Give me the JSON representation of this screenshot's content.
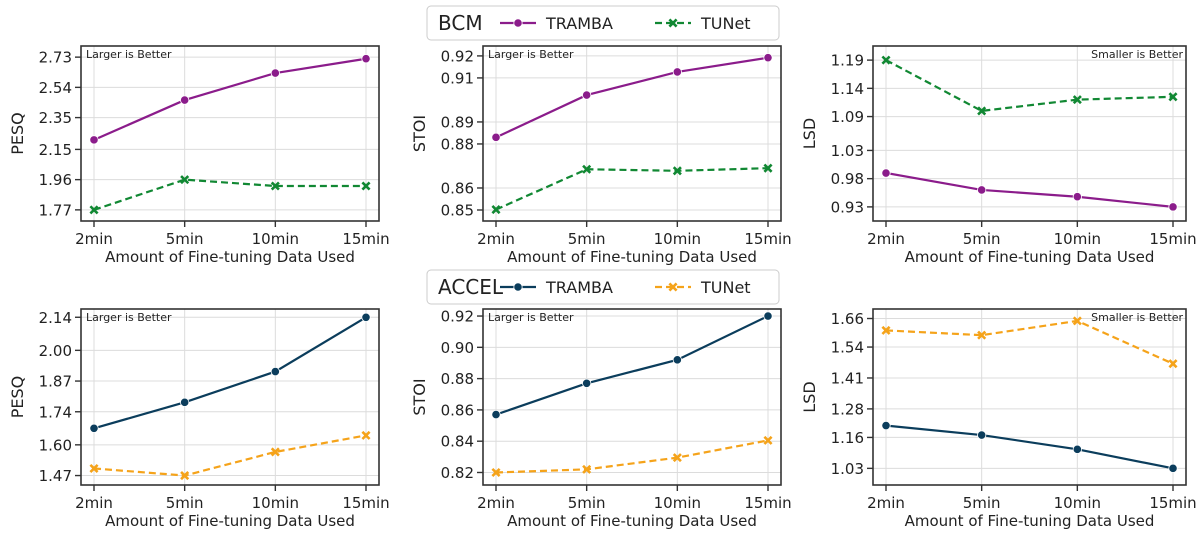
{
  "legends": [
    {
      "title": "BCM",
      "entries": [
        {
          "label": "TRAMBA",
          "color": "#8b1c8b",
          "marker": "circle",
          "dash": "solid"
        },
        {
          "label": "TUNet",
          "color": "#118833",
          "marker": "x",
          "dash": "dashed"
        }
      ]
    },
    {
      "title": "ACCEL",
      "entries": [
        {
          "label": "TRAMBA",
          "color": "#0b3d5c",
          "marker": "circle",
          "dash": "solid"
        },
        {
          "label": "TUNet",
          "color": "#f5a31a",
          "marker": "x",
          "dash": "dashed"
        }
      ]
    }
  ],
  "chart_data": [
    {
      "type": "line",
      "group": "BCM",
      "categories": [
        "2min",
        "5min",
        "10min",
        "15min"
      ],
      "xlabel": "Amount of Fine-tuning Data Used",
      "ylabel": "PESQ",
      "note": "Larger is Better",
      "note_position": "top-left",
      "yticks": [
        "1.77",
        "1.96",
        "2.15",
        "2.35",
        "2.54",
        "2.73"
      ],
      "ylim": [
        1.7,
        2.8
      ],
      "grid": true,
      "series": [
        {
          "name": "TRAMBA",
          "color": "#8b1c8b",
          "marker": "circle",
          "dash": "solid",
          "values": [
            2.21,
            2.46,
            2.63,
            2.72
          ]
        },
        {
          "name": "TUNet",
          "color": "#118833",
          "marker": "x",
          "dash": "dashed",
          "values": [
            1.77,
            1.96,
            1.92,
            1.92
          ]
        }
      ]
    },
    {
      "type": "line",
      "group": "BCM",
      "categories": [
        "2min",
        "5min",
        "10min",
        "15min"
      ],
      "xlabel": "Amount of Fine-tuning Data Used",
      "ylabel": "STOI",
      "note": "Larger is Better",
      "note_position": "top-left",
      "yticks": [
        "0.85",
        "0.86",
        "0.88",
        "0.89",
        "0.91",
        "0.92"
      ],
      "ylim": [
        0.845,
        0.9245
      ],
      "grid": true,
      "series": [
        {
          "name": "TRAMBA",
          "color": "#8b1c8b",
          "marker": "circle",
          "dash": "solid",
          "values": [
            0.883,
            0.9022,
            0.9127,
            0.9192
          ]
        },
        {
          "name": "TUNet",
          "color": "#118833",
          "marker": "x",
          "dash": "dashed",
          "values": [
            0.8502,
            0.8685,
            0.8678,
            0.869
          ]
        }
      ]
    },
    {
      "type": "line",
      "group": "BCM",
      "categories": [
        "2min",
        "5min",
        "10min",
        "15min"
      ],
      "xlabel": "Amount of Fine-tuning Data Used",
      "ylabel": "LSD",
      "note": "Smaller is Better",
      "note_position": "top-right",
      "yticks": [
        "0.93",
        "0.98",
        "1.03",
        "1.09",
        "1.14",
        "1.19"
      ],
      "ylim": [
        0.905,
        1.215
      ],
      "grid": true,
      "series": [
        {
          "name": "TRAMBA",
          "color": "#8b1c8b",
          "marker": "circle",
          "dash": "solid",
          "values": [
            0.99,
            0.96,
            0.948,
            0.93
          ]
        },
        {
          "name": "TUNet",
          "color": "#118833",
          "marker": "x",
          "dash": "dashed",
          "values": [
            1.19,
            1.1,
            1.12,
            1.125
          ]
        }
      ]
    },
    {
      "type": "line",
      "group": "ACCEL",
      "categories": [
        "2min",
        "5min",
        "10min",
        "15min"
      ],
      "xlabel": "Amount of Fine-tuning Data Used",
      "ylabel": "PESQ",
      "note": "Larger is Better",
      "note_position": "top-left",
      "yticks": [
        "1.47",
        "1.60",
        "1.74",
        "1.87",
        "2.00",
        "2.14"
      ],
      "ylim": [
        1.43,
        2.175
      ],
      "grid": true,
      "series": [
        {
          "name": "TRAMBA",
          "color": "#0b3d5c",
          "marker": "circle",
          "dash": "solid",
          "values": [
            1.67,
            1.78,
            1.91,
            2.14
          ]
        },
        {
          "name": "TUNet",
          "color": "#f5a31a",
          "marker": "x",
          "dash": "dashed",
          "values": [
            1.5,
            1.47,
            1.57,
            1.64
          ]
        }
      ]
    },
    {
      "type": "line",
      "group": "ACCEL",
      "categories": [
        "2min",
        "5min",
        "10min",
        "15min"
      ],
      "xlabel": "Amount of Fine-tuning Data Used",
      "ylabel": "STOI",
      "note": "Larger is Better",
      "note_position": "top-left",
      "yticks": [
        "0.82",
        "0.84",
        "0.86",
        "0.88",
        "0.90",
        "0.92"
      ],
      "ylim": [
        0.812,
        0.9245
      ],
      "grid": true,
      "series": [
        {
          "name": "TRAMBA",
          "color": "#0b3d5c",
          "marker": "circle",
          "dash": "solid",
          "values": [
            0.857,
            0.877,
            0.892,
            0.92
          ]
        },
        {
          "name": "TUNet",
          "color": "#f5a31a",
          "marker": "x",
          "dash": "dashed",
          "values": [
            0.82,
            0.822,
            0.8295,
            0.8405
          ]
        }
      ]
    },
    {
      "type": "line",
      "group": "ACCEL",
      "categories": [
        "2min",
        "5min",
        "10min",
        "15min"
      ],
      "xlabel": "Amount of Fine-tuning Data Used",
      "ylabel": "LSD",
      "note": "Smaller is Better",
      "note_position": "top-right",
      "yticks": [
        "1.03",
        "1.16",
        "1.28",
        "1.41",
        "1.54",
        "1.66"
      ],
      "ylim": [
        0.96,
        1.7
      ],
      "grid": true,
      "series": [
        {
          "name": "TRAMBA",
          "color": "#0b3d5c",
          "marker": "circle",
          "dash": "solid",
          "values": [
            1.21,
            1.17,
            1.11,
            1.03
          ]
        },
        {
          "name": "TUNet",
          "color": "#f5a31a",
          "marker": "x",
          "dash": "dashed",
          "values": [
            1.61,
            1.59,
            1.65,
            1.47
          ]
        }
      ]
    }
  ]
}
